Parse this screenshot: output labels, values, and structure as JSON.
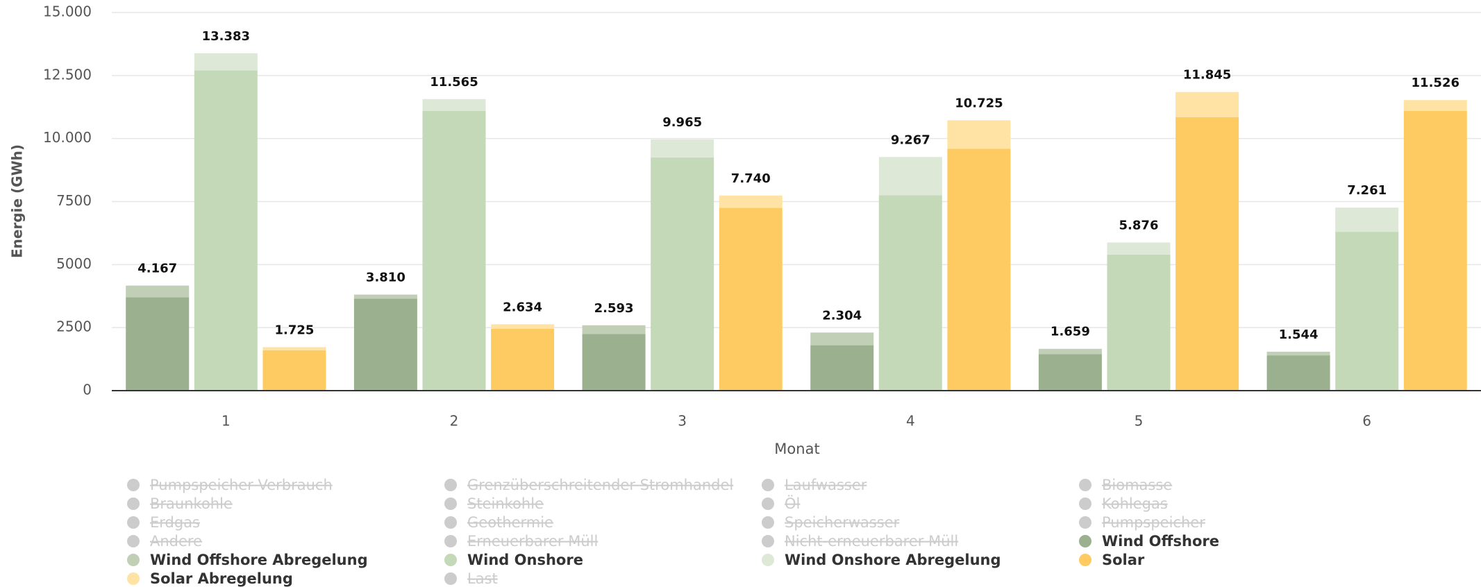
{
  "chart_data": {
    "type": "stacked_bar",
    "x_label": "Monat",
    "y_label": "Energie (GWh)",
    "categories": [
      "1",
      "2",
      "3",
      "4",
      "5",
      "6"
    ],
    "ylim": [
      0,
      15000
    ],
    "yticks": [
      0,
      2500,
      5000,
      7500,
      {
        "value": 10000,
        "label": "10.000"
      },
      {
        "value": 12500,
        "label": "12.500"
      },
      {
        "value": 15000,
        "label": "15.000"
      }
    ],
    "grid": true,
    "series": [
      {
        "name": "Pumpspeicher Verbrauch",
        "visible": false
      },
      {
        "name": "Grenzüberschreitender Stromhandel",
        "visible": false
      },
      {
        "name": "Laufwasser",
        "visible": false
      },
      {
        "name": "Biomasse",
        "visible": false
      },
      {
        "name": "Braunkohle",
        "visible": false
      },
      {
        "name": "Steinkohle",
        "visible": false
      },
      {
        "name": "Öl",
        "visible": false
      },
      {
        "name": "Kohlegas",
        "visible": false
      },
      {
        "name": "Erdgas",
        "visible": false
      },
      {
        "name": "Geothermie",
        "visible": false
      },
      {
        "name": "Speicherwasser",
        "visible": false
      },
      {
        "name": "Pumpspeicher",
        "visible": false
      },
      {
        "name": "Andere",
        "visible": false
      },
      {
        "name": "Erneuerbarer Müll",
        "visible": false
      },
      {
        "name": "Nicht-erneuerbarer Müll",
        "visible": false
      },
      {
        "name": "Wind Offshore",
        "visible": true,
        "stack": "Wind Offshore",
        "color": "#9ab08f",
        "values": [
          3700,
          3650,
          2250,
          1800,
          1450,
          1400
        ]
      },
      {
        "name": "Wind Offshore Abregelung",
        "visible": true,
        "stack": "Wind Offshore",
        "color": "#c0cfb6",
        "values": [
          467,
          160,
          343,
          504,
          209,
          144
        ]
      },
      {
        "name": "Wind Onshore",
        "visible": true,
        "stack": "Wind Onshore",
        "color": "#c3d9b8",
        "values": [
          12700,
          11100,
          9250,
          7750,
          5400,
          6300
        ]
      },
      {
        "name": "Wind Onshore Abregelung",
        "visible": true,
        "stack": "Wind Onshore",
        "color": "#dde9d6",
        "values": [
          683,
          465,
          715,
          1517,
          476,
          961
        ]
      },
      {
        "name": "Solar",
        "visible": true,
        "stack": "Solar",
        "color": "#fecb63",
        "values": [
          1600,
          2450,
          7250,
          9600,
          10850,
          11100
        ]
      },
      {
        "name": "Solar Abregelung",
        "visible": true,
        "stack": "Solar",
        "color": "#ffe3a4",
        "values": [
          125,
          184,
          490,
          1125,
          995,
          426
        ]
      },
      {
        "name": "Last",
        "visible": false
      }
    ],
    "stack_totals": [
      {
        "stack": "Wind Offshore",
        "values": [
          4167,
          3810,
          2593,
          2304,
          1659,
          1544
        ],
        "value_labels": [
          "4.167",
          "3.810",
          "2.593",
          "2.304",
          "1.659",
          "1.544"
        ]
      },
      {
        "stack": "Wind Onshore",
        "values": [
          13383,
          11565,
          9965,
          9267,
          5876,
          7261
        ],
        "value_labels": [
          "13.383",
          "11.565",
          "9.965",
          "9.267",
          "5.876",
          "7.261"
        ]
      },
      {
        "stack": "Solar",
        "values": [
          1725,
          2634,
          7740,
          10725,
          11845,
          11526
        ],
        "value_labels": [
          "1.725",
          "2.634",
          "7.740",
          "10.725",
          "11.845",
          "11.526"
        ]
      }
    ]
  }
}
